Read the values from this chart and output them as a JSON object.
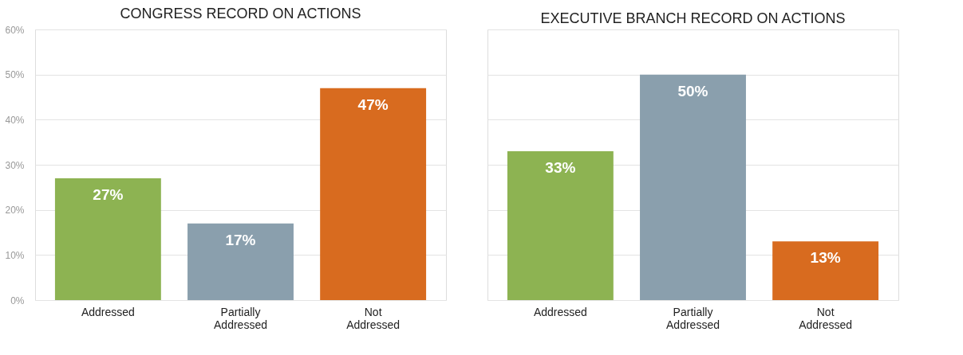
{
  "chart_data": [
    {
      "type": "bar",
      "title": "CONGRESS RECORD ON ACTIONS",
      "categories": [
        "Addressed",
        "Partially Addressed",
        "Not Addressed"
      ],
      "values": [
        27,
        17,
        47
      ],
      "colors": [
        "#8db352",
        "#8a9fad",
        "#d86b1f"
      ],
      "value_labels": [
        "27%",
        "17%",
        "47%"
      ],
      "ylim": [
        0,
        60
      ],
      "yticks": [
        {
          "value": 0,
          "label": "0%"
        },
        {
          "value": 10,
          "label": "10%"
        },
        {
          "value": 20,
          "label": "20%"
        },
        {
          "value": 30,
          "label": "30%"
        },
        {
          "value": 40,
          "label": "40%"
        },
        {
          "value": 50,
          "label": "50%"
        },
        {
          "value": 60,
          "label": "60%"
        }
      ],
      "grid": "y"
    },
    {
      "type": "bar",
      "title": "EXECUTIVE BRANCH RECORD ON ACTIONS",
      "categories": [
        "Addressed",
        "Partially Addressed",
        "Not Addressed"
      ],
      "values": [
        33,
        50,
        13
      ],
      "colors": [
        "#8db352",
        "#8a9fad",
        "#d86b1f"
      ],
      "value_labels": [
        "33%",
        "50%",
        "13%"
      ],
      "ylim": [
        0,
        60
      ],
      "yticks": [
        0,
        10,
        20,
        30,
        40,
        50,
        60
      ],
      "grid": "y",
      "tick_labels": "x"
    }
  ]
}
